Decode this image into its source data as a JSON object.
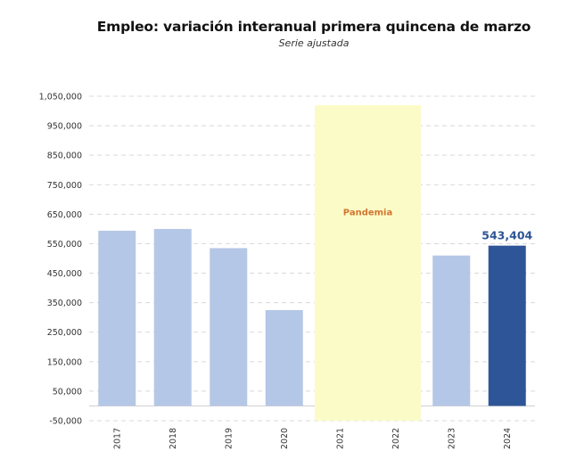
{
  "chart_data": {
    "type": "bar",
    "title": "Empleo: variación interanual primera quincena de marzo",
    "subtitle": "Serie ajustada",
    "xlabel": "",
    "ylabel": "",
    "categories": [
      "2017",
      "2018",
      "2019",
      "2020",
      "2021",
      "2022",
      "2023",
      "2024"
    ],
    "values": [
      594000,
      600000,
      535000,
      325000,
      null,
      null,
      510000,
      543404
    ],
    "ylim": [
      -50000,
      1050000
    ],
    "yticks": [
      -50000,
      50000,
      150000,
      250000,
      350000,
      450000,
      550000,
      650000,
      750000,
      850000,
      950000,
      1050000
    ],
    "ytick_labels": [
      "-50,000",
      "50,000",
      "150,000",
      "250,000",
      "350,000",
      "450,000",
      "550,000",
      "650,000",
      "750,000",
      "850,000",
      "950,000",
      "1,050,000"
    ],
    "grid": true,
    "highlight": {
      "category": "2024",
      "label": "543,404"
    },
    "annotation": {
      "text": "Pandemia",
      "categories": [
        "2021",
        "2022"
      ]
    },
    "colors": {
      "bar": "#b5c7e6",
      "highlight_bar": "#2e5597",
      "highlight_label": "#2e5597",
      "pandemic_fill": "#fbfbc8",
      "pandemic_text": "#d2762e",
      "grid": "#d9d9d9"
    }
  }
}
